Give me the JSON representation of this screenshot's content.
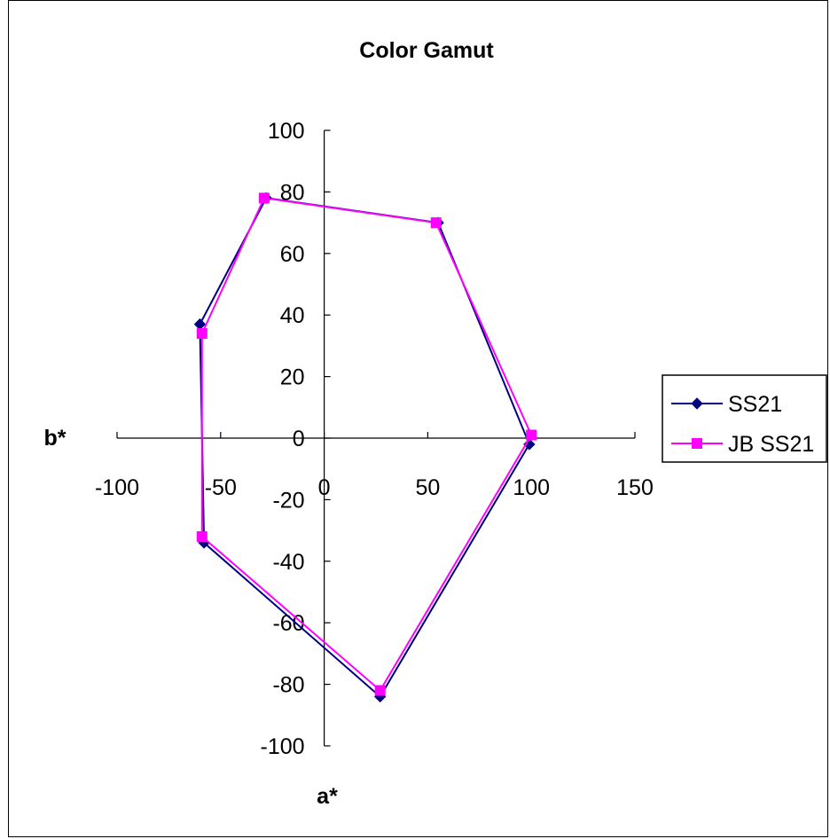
{
  "chart_data": {
    "type": "scatter",
    "title": "Color  Gamut",
    "xlabel": "a*",
    "ylabel": "b*",
    "xlim": [
      -100,
      150
    ],
    "ylim": [
      -100,
      100
    ],
    "x_ticks": [
      -100,
      -50,
      0,
      50,
      100,
      150
    ],
    "y_ticks": [
      -100,
      -80,
      -60,
      -40,
      -20,
      0,
      20,
      40,
      60,
      80,
      100
    ],
    "grid": false,
    "legend_position": "right",
    "series": [
      {
        "name": "SS21",
        "color": "#000080",
        "marker": "diamond",
        "closed": true,
        "points": [
          {
            "x": -28,
            "y": 78
          },
          {
            "x": 55,
            "y": 70
          },
          {
            "x": 99,
            "y": -2
          },
          {
            "x": 27,
            "y": -84
          },
          {
            "x": -58,
            "y": -34
          },
          {
            "x": -60,
            "y": 37
          }
        ]
      },
      {
        "name": "JB SS21",
        "color": "#ff00ff",
        "marker": "square",
        "closed": true,
        "points": [
          {
            "x": -29,
            "y": 78
          },
          {
            "x": 54,
            "y": 70
          },
          {
            "x": 100,
            "y": 1
          },
          {
            "x": 27,
            "y": -82
          },
          {
            "x": -59,
            "y": -32
          },
          {
            "x": -59,
            "y": 34
          }
        ]
      }
    ]
  }
}
